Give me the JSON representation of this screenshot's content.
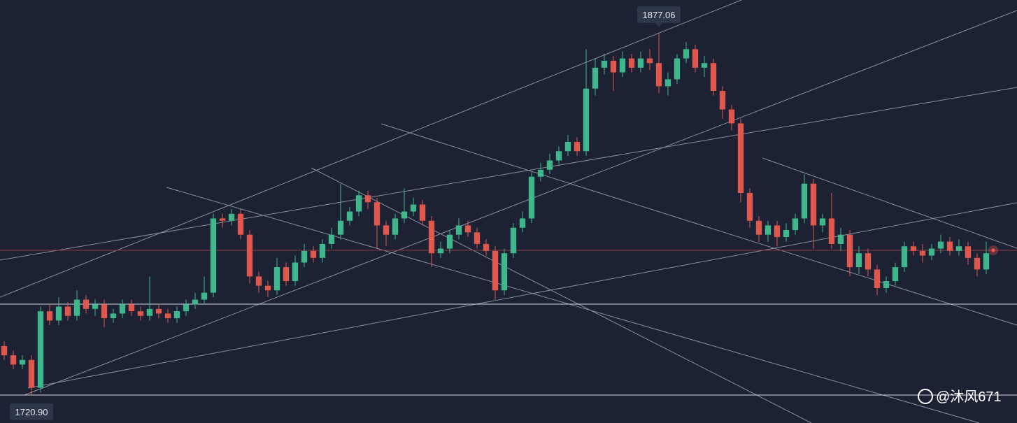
{
  "chart_data": {
    "type": "candlestick",
    "ylim": [
      1708.8,
      1891.2
    ],
    "up_color": "#3fb68b",
    "down_color": "#e0584d",
    "open": [
      1742,
      1738,
      1734,
      1736,
      1724,
      1757,
      1753,
      1759,
      1755,
      1762,
      1758,
      1760,
      1754,
      1756,
      1760,
      1757,
      1755,
      1758,
      1756,
      1754,
      1757,
      1760,
      1762,
      1765,
      1797,
      1796,
      1799,
      1790,
      1772,
      1768,
      1766,
      1776,
      1770,
      1778,
      1783,
      1780,
      1786,
      1790,
      1796,
      1800,
      1807,
      1804,
      1794,
      1790,
      1797,
      1800,
      1803,
      1796,
      1782,
      1784,
      1790,
      1794,
      1791,
      1786,
      1783,
      1766,
      1782,
      1793,
      1797,
      1815,
      1818,
      1822,
      1826,
      1830,
      1826,
      1853,
      1862,
      1865,
      1860,
      1866,
      1862,
      1866,
      1864,
      1854,
      1857,
      1866,
      1870,
      1862,
      1864,
      1852,
      1844,
      1838,
      1808,
      1796,
      1790,
      1794,
      1789,
      1792,
      1797,
      1812,
      1794,
      1797,
      1786,
      1790,
      1776,
      1782,
      1775,
      1767,
      1770,
      1776,
      1785,
      1783,
      1781,
      1784,
      1787,
      1783,
      1785,
      1780,
      1775
    ],
    "high": [
      1744,
      1740,
      1738,
      1738,
      1759,
      1760,
      1763,
      1761,
      1766,
      1764,
      1762,
      1762,
      1758,
      1762,
      1762,
      1759,
      1772,
      1760,
      1758,
      1759,
      1762,
      1765,
      1772,
      1799,
      1799,
      1801,
      1801,
      1792,
      1774,
      1770,
      1780,
      1778,
      1781,
      1786,
      1785,
      1788,
      1793,
      1812,
      1802,
      1809,
      1809,
      1806,
      1796,
      1799,
      1810,
      1806,
      1805,
      1798,
      1787,
      1792,
      1797,
      1796,
      1793,
      1788,
      1785,
      1784,
      1795,
      1800,
      1817,
      1821,
      1825,
      1828,
      1833,
      1832,
      1870,
      1866,
      1868,
      1867,
      1869,
      1868,
      1869,
      1870,
      1877.06,
      1860,
      1868,
      1873,
      1872,
      1867,
      1866,
      1854,
      1846,
      1840,
      1810,
      1798,
      1796,
      1796,
      1795,
      1799,
      1816,
      1814,
      1799,
      1808,
      1793,
      1792,
      1785,
      1784,
      1777,
      1772,
      1778,
      1787,
      1787,
      1786,
      1786,
      1790,
      1789,
      1788,
      1787,
      1782,
      1787
    ],
    "low": [
      1736,
      1732,
      1732,
      1720.9,
      1722,
      1751,
      1751,
      1753,
      1753,
      1756,
      1755,
      1750,
      1752,
      1754,
      1755,
      1753,
      1753,
      1754,
      1752,
      1752,
      1755,
      1758,
      1760,
      1763,
      1793,
      1794,
      1788,
      1769,
      1765,
      1763,
      1764,
      1768,
      1768,
      1776,
      1778,
      1778,
      1784,
      1788,
      1794,
      1798,
      1801,
      1784,
      1785,
      1788,
      1795,
      1798,
      1794,
      1776,
      1780,
      1782,
      1788,
      1789,
      1784,
      1781,
      1762,
      1764,
      1780,
      1791,
      1795,
      1813,
      1816,
      1820,
      1824,
      1824,
      1824,
      1850,
      1859,
      1852,
      1858,
      1860,
      1860,
      1861,
      1851,
      1850,
      1855,
      1864,
      1860,
      1858,
      1850,
      1840,
      1835,
      1804,
      1793,
      1787,
      1787,
      1785,
      1787,
      1790,
      1795,
      1784,
      1791,
      1784,
      1783,
      1772,
      1773,
      1772,
      1764,
      1765,
      1768,
      1774,
      1781,
      1778,
      1779,
      1782,
      1781,
      1781,
      1777,
      1772,
      1773
    ],
    "close": [
      1738,
      1734,
      1736,
      1724,
      1757,
      1753,
      1759,
      1755,
      1762,
      1758,
      1760,
      1754,
      1756,
      1760,
      1757,
      1755,
      1758,
      1756,
      1754,
      1757,
      1760,
      1762,
      1765,
      1797,
      1796,
      1799,
      1790,
      1772,
      1768,
      1766,
      1776,
      1770,
      1778,
      1783,
      1780,
      1786,
      1790,
      1796,
      1800,
      1807,
      1804,
      1794,
      1790,
      1797,
      1800,
      1803,
      1796,
      1782,
      1784,
      1790,
      1794,
      1791,
      1786,
      1783,
      1766,
      1782,
      1793,
      1797,
      1815,
      1818,
      1822,
      1826,
      1830,
      1826,
      1853,
      1862,
      1865,
      1860,
      1866,
      1862,
      1866,
      1864,
      1854,
      1857,
      1866,
      1870,
      1862,
      1864,
      1852,
      1844,
      1838,
      1808,
      1796,
      1790,
      1794,
      1789,
      1792,
      1797,
      1812,
      1794,
      1797,
      1786,
      1790,
      1776,
      1782,
      1775,
      1767,
      1770,
      1776,
      1785,
      1783,
      1781,
      1784,
      1787,
      1783,
      1785,
      1780,
      1775,
      1782
    ],
    "annotations": [
      1877.06,
      {
        "value": 1720.9,
        "label": "1720.90"
      }
    ],
    "watermark": "@沐风671"
  }
}
